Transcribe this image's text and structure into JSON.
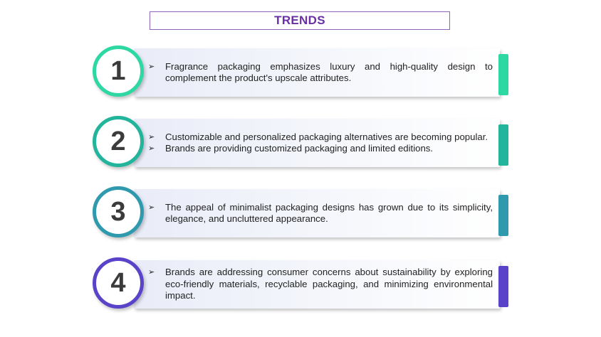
{
  "title": "TRENDS",
  "bullet_symbol": "➢",
  "trends": [
    {
      "number": "1",
      "color": "#2ed8a3",
      "bullets": [
        "Fragrance packaging emphasizes luxury and high-quality design to complement the product's upscale attributes."
      ]
    },
    {
      "number": "2",
      "color": "#22b59b",
      "bullets": [
        "Customizable and personalized packaging alternatives are becoming popular.",
        "Brands are providing customized packaging and limited editions."
      ]
    },
    {
      "number": "3",
      "color": "#2f9aad",
      "bullets": [
        "The appeal of minimalist packaging designs has grown due to its simplicity, elegance, and uncluttered appearance."
      ]
    },
    {
      "number": "4",
      "color": "#5b43c9",
      "bullets": [
        "Brands are addressing consumer concerns about sustainability by exploring eco-friendly materials, recyclable packaging, and minimizing environmental impact."
      ]
    }
  ]
}
